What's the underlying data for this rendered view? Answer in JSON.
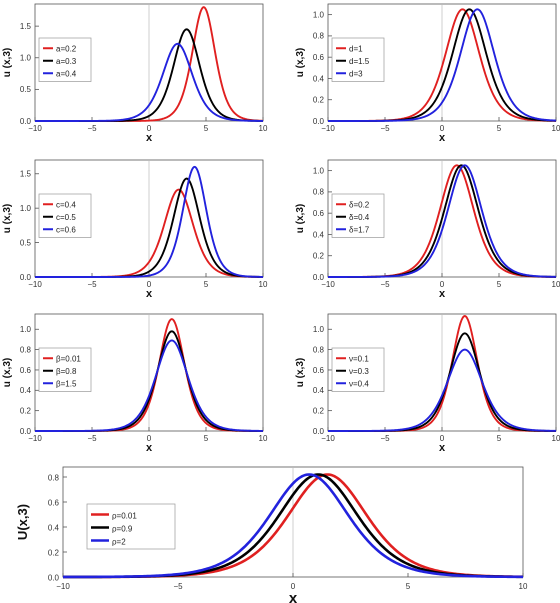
{
  "chart_data": [
    {
      "type": "line",
      "xlabel": "x",
      "ylabel": "u (x,3)",
      "xlim": [
        -10,
        10
      ],
      "ylim": [
        0,
        1.85
      ],
      "xticks": [
        -10,
        -5,
        0,
        5,
        10
      ],
      "yticks": [
        0.0,
        0.5,
        1.0,
        1.5
      ],
      "legend": "top-left",
      "grid": false,
      "series": [
        {
          "name": "a=0.2",
          "color": "#e02020",
          "peak_x": 4.8,
          "peak_y": 1.8,
          "width": 1.35
        },
        {
          "name": "a=0.3",
          "color": "#000000",
          "peak_x": 3.3,
          "peak_y": 1.45,
          "width": 1.55
        },
        {
          "name": "a=0.4",
          "color": "#2222dd",
          "peak_x": 2.5,
          "peak_y": 1.22,
          "width": 1.75
        }
      ]
    },
    {
      "type": "line",
      "xlabel": "x",
      "ylabel": "u (x,3)",
      "xlim": [
        -10,
        10
      ],
      "ylim": [
        0,
        1.1
      ],
      "xticks": [
        -10,
        -5,
        0,
        5,
        10
      ],
      "yticks": [
        0.0,
        0.2,
        0.4,
        0.6,
        0.8,
        1.0
      ],
      "legend": "top-left",
      "grid": false,
      "series": [
        {
          "name": "d=1",
          "color": "#e02020",
          "peak_x": 1.8,
          "peak_y": 1.05,
          "width": 2.0
        },
        {
          "name": "d=1.5",
          "color": "#000000",
          "peak_x": 2.4,
          "peak_y": 1.05,
          "width": 2.0
        },
        {
          "name": "d=3",
          "color": "#2222dd",
          "peak_x": 3.1,
          "peak_y": 1.05,
          "width": 2.0
        }
      ]
    },
    {
      "type": "line",
      "xlabel": "x",
      "ylabel": "u (x,3)",
      "xlim": [
        -10,
        10
      ],
      "ylim": [
        0,
        1.7
      ],
      "xticks": [
        -10,
        -5,
        0,
        5,
        10
      ],
      "yticks": [
        0.0,
        0.5,
        1.0,
        1.5
      ],
      "legend": "top-left",
      "grid": false,
      "series": [
        {
          "name": "c=0.4",
          "color": "#e02020",
          "peak_x": 2.6,
          "peak_y": 1.27,
          "width": 1.7
        },
        {
          "name": "c=0.5",
          "color": "#000000",
          "peak_x": 3.3,
          "peak_y": 1.43,
          "width": 1.55
        },
        {
          "name": "c=0.6",
          "color": "#2222dd",
          "peak_x": 4.0,
          "peak_y": 1.6,
          "width": 1.4
        }
      ]
    },
    {
      "type": "line",
      "xlabel": "x",
      "ylabel": "u (x,3)",
      "xlim": [
        -10,
        10
      ],
      "ylim": [
        0,
        1.1
      ],
      "xticks": [
        -10,
        -5,
        0,
        5,
        10
      ],
      "yticks": [
        0.0,
        0.2,
        0.4,
        0.6,
        0.8,
        1.0
      ],
      "legend": "top-left",
      "grid": false,
      "series": [
        {
          "name": "δ=0.2",
          "color": "#e02020",
          "peak_x": 1.3,
          "peak_y": 1.05,
          "width": 2.0
        },
        {
          "name": "δ=0.4",
          "color": "#000000",
          "peak_x": 1.7,
          "peak_y": 1.05,
          "width": 2.0
        },
        {
          "name": "δ=1.7",
          "color": "#2222dd",
          "peak_x": 2.0,
          "peak_y": 1.05,
          "width": 2.0
        }
      ]
    },
    {
      "type": "line",
      "xlabel": "x",
      "ylabel": "u (x,3)",
      "xlim": [
        -10,
        10
      ],
      "ylim": [
        0,
        1.15
      ],
      "xticks": [
        -10,
        -5,
        0,
        5,
        10
      ],
      "yticks": [
        0.0,
        0.2,
        0.4,
        0.6,
        0.8,
        1.0
      ],
      "legend": "top-left",
      "grid": false,
      "series": [
        {
          "name": "β=0.01",
          "color": "#e02020",
          "peak_x": 2.0,
          "peak_y": 1.1,
          "width": 1.5
        },
        {
          "name": "β=0.8",
          "color": "#000000",
          "peak_x": 2.0,
          "peak_y": 0.98,
          "width": 1.7
        },
        {
          "name": "β=1.5",
          "color": "#2222dd",
          "peak_x": 2.0,
          "peak_y": 0.89,
          "width": 1.9
        }
      ]
    },
    {
      "type": "line",
      "xlabel": "x",
      "ylabel": "u (x,3)",
      "xlim": [
        -10,
        10
      ],
      "ylim": [
        0,
        1.15
      ],
      "xticks": [
        -10,
        -5,
        0,
        5,
        10
      ],
      "yticks": [
        0.0,
        0.2,
        0.4,
        0.6,
        0.8,
        1.0
      ],
      "legend": "top-left",
      "grid": false,
      "series": [
        {
          "name": "ν=0.1",
          "color": "#e02020",
          "peak_x": 2.0,
          "peak_y": 1.13,
          "width": 1.5
        },
        {
          "name": "ν=0.3",
          "color": "#000000",
          "peak_x": 2.0,
          "peak_y": 0.96,
          "width": 1.75
        },
        {
          "name": "ν=0.4",
          "color": "#2222dd",
          "peak_x": 2.0,
          "peak_y": 0.8,
          "width": 2.05
        }
      ]
    },
    {
      "type": "line",
      "xlabel": "x",
      "ylabel": "U(x,3)",
      "xlim": [
        -10,
        10
      ],
      "ylim": [
        0,
        0.88
      ],
      "xticks": [
        -10,
        -5,
        0,
        5,
        10
      ],
      "yticks": [
        0.0,
        0.2,
        0.4,
        0.6,
        0.8
      ],
      "legend": "top-left",
      "grid": false,
      "series": [
        {
          "name": "ρ=0.01",
          "color": "#e02020",
          "peak_x": 1.5,
          "peak_y": 0.82,
          "width": 2.3
        },
        {
          "name": "ρ=0.9",
          "color": "#000000",
          "peak_x": 1.1,
          "peak_y": 0.82,
          "width": 2.3
        },
        {
          "name": "ρ=2",
          "color": "#2222dd",
          "peak_x": 0.7,
          "peak_y": 0.82,
          "width": 2.3
        }
      ]
    }
  ]
}
